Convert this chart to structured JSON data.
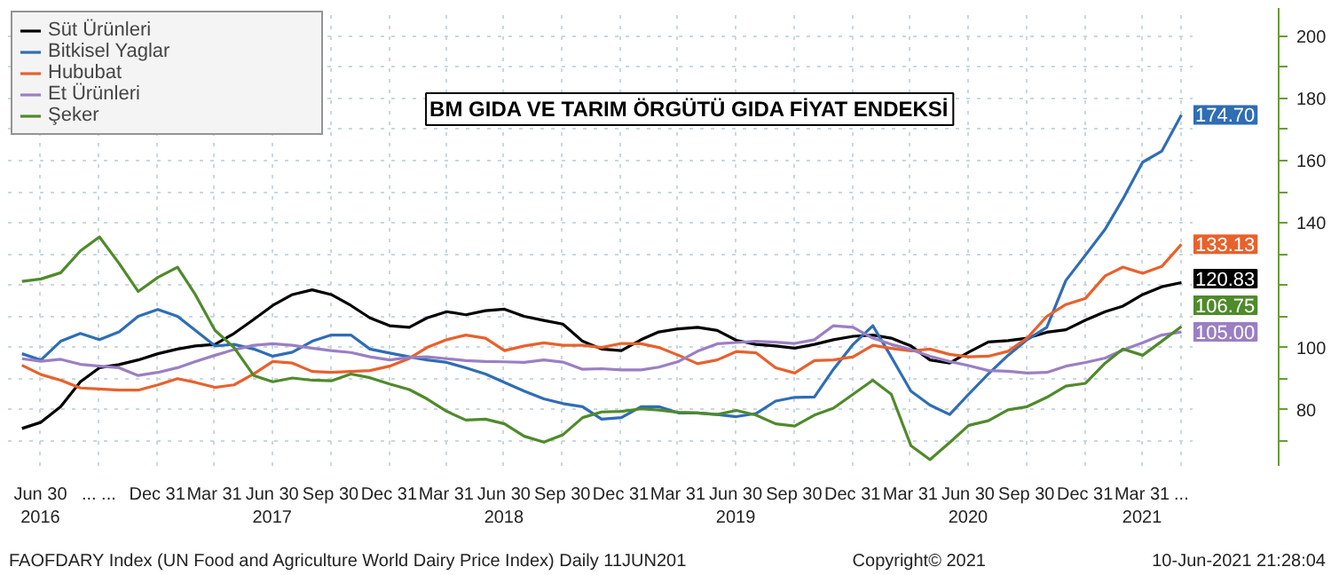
{
  "chart_data": {
    "type": "line",
    "title": "BM GIDA VE TARIM ÖRGÜTÜ GIDA FİYAT ENDEKSİ",
    "annotations": [
      "FAOFDARY Index (UN Food and Agriculture World Dairy Price Index)  Daily 11JUN201",
      "Copyright© 2021",
      "10-Jun-2021 21:28:04"
    ],
    "x": [
      "2016-06",
      "2016-07",
      "2016-08",
      "2016-09",
      "2016-10",
      "2016-11",
      "2016-12",
      "2017-01",
      "2017-02",
      "2017-03",
      "2017-04",
      "2017-05",
      "2017-06",
      "2017-07",
      "2017-08",
      "2017-09",
      "2017-10",
      "2017-11",
      "2017-12",
      "2018-01",
      "2018-02",
      "2018-03",
      "2018-04",
      "2018-05",
      "2018-06",
      "2018-07",
      "2018-08",
      "2018-09",
      "2018-10",
      "2018-11",
      "2018-12",
      "2019-01",
      "2019-02",
      "2019-03",
      "2019-04",
      "2019-05",
      "2019-06",
      "2019-07",
      "2019-08",
      "2019-09",
      "2019-10",
      "2019-11",
      "2019-12",
      "2020-01",
      "2020-02",
      "2020-03",
      "2020-04",
      "2020-05",
      "2020-06",
      "2020-07",
      "2020-08",
      "2020-09",
      "2020-10",
      "2020-11",
      "2020-12",
      "2021-01",
      "2021-02",
      "2021-03",
      "2021-04",
      "2021-05",
      "2021-06"
    ],
    "series": [
      {
        "name": "Süt Ürünleri",
        "color": "#000000",
        "values": [
          74,
          76,
          81,
          89,
          93.5,
          94.5,
          96,
          98,
          99.5,
          100.5,
          101,
          104.5,
          109,
          113.5,
          117,
          118.5,
          117,
          113.5,
          109.5,
          107,
          106.5,
          109.5,
          111.5,
          110.5,
          111.8,
          112.3,
          110,
          108.7,
          107.5,
          102,
          99.5,
          99,
          102.5,
          105,
          106,
          106.5,
          105.5,
          102.3,
          101,
          100.5,
          99.8,
          101,
          102.5,
          103.6,
          104,
          103,
          100.5,
          96,
          95,
          98.5,
          101.8,
          102.2,
          103,
          104.9,
          105.7,
          108.8,
          111.5,
          113.3,
          117,
          119.5,
          120.83
        ],
        "value_labels": [
          null,
          null,
          null,
          null,
          null,
          null,
          null,
          null,
          null,
          null,
          null,
          null,
          null,
          null,
          null,
          null,
          null,
          null,
          null,
          null,
          null,
          null,
          null,
          null,
          null,
          null,
          null,
          null,
          null,
          null,
          null,
          null,
          null,
          null,
          null,
          null,
          null,
          null,
          null,
          null,
          null,
          null,
          null,
          null,
          null,
          null,
          null,
          null,
          null,
          null,
          null,
          null,
          null,
          null,
          null,
          null,
          null,
          null,
          null,
          null,
          "120.83"
        ]
      },
      {
        "name": "Bitkisel Yaglar",
        "color": "#2f6db5",
        "values": [
          98,
          96,
          102,
          104.5,
          102.5,
          105,
          110,
          112.2,
          110,
          105.5,
          100.5,
          101,
          99.5,
          97.2,
          98.5,
          102,
          104,
          104,
          99.5,
          98.2,
          97,
          96,
          95.2,
          93.5,
          91.5,
          88.8,
          86,
          83.5,
          82,
          81,
          77,
          77.5,
          81,
          81,
          79,
          79,
          78.5,
          77.8,
          78.8,
          82.8,
          84,
          84.1,
          93,
          101,
          107,
          97,
          86,
          81.5,
          78.5,
          85,
          91.5,
          97.5,
          102.5,
          106.5,
          121.5,
          129.7,
          138,
          147.7,
          159.5,
          163,
          174.7
        ],
        "value_labels": [
          null,
          null,
          null,
          null,
          null,
          null,
          null,
          null,
          null,
          null,
          null,
          null,
          null,
          null,
          null,
          null,
          null,
          null,
          null,
          null,
          null,
          null,
          null,
          null,
          null,
          null,
          null,
          null,
          null,
          null,
          null,
          null,
          null,
          null,
          null,
          null,
          null,
          null,
          null,
          null,
          null,
          null,
          null,
          null,
          null,
          null,
          null,
          null,
          null,
          null,
          null,
          null,
          null,
          null,
          null,
          null,
          null,
          null,
          null,
          null,
          "174.70"
        ]
      },
      {
        "name": "Hububat",
        "color": "#e8612c",
        "values": [
          94.3,
          91.3,
          89.5,
          87,
          86.7,
          86.3,
          86.3,
          88,
          90,
          88.8,
          87.2,
          88,
          91.5,
          95.5,
          95,
          92.3,
          92,
          92.3,
          92.6,
          94,
          96.5,
          100,
          102.5,
          104,
          103,
          99,
          100.5,
          101.5,
          100.7,
          100.7,
          100,
          101.3,
          101.2,
          100,
          97.5,
          94.8,
          96,
          98.7,
          98.3,
          93.5,
          91.8,
          95.8,
          96,
          97,
          100.7,
          99.7,
          98.9,
          99.5,
          97.8,
          97,
          97.2,
          98.8,
          103,
          110,
          113.8,
          115.8,
          123,
          125.8,
          123.8,
          126,
          133.13
        ],
        "value_labels": [
          null,
          null,
          null,
          null,
          null,
          null,
          null,
          null,
          null,
          null,
          null,
          null,
          null,
          null,
          null,
          null,
          null,
          null,
          null,
          null,
          null,
          null,
          null,
          null,
          null,
          null,
          null,
          null,
          null,
          null,
          null,
          null,
          null,
          null,
          null,
          null,
          null,
          null,
          null,
          null,
          null,
          null,
          null,
          null,
          null,
          null,
          null,
          null,
          null,
          null,
          null,
          null,
          null,
          null,
          null,
          null,
          null,
          null,
          null,
          null,
          "133.13"
        ]
      },
      {
        "name": "Et Ürünleri",
        "color": "#9a7fc4",
        "values": [
          96.4,
          95.6,
          96.2,
          94.6,
          94,
          93.5,
          91,
          92,
          93.5,
          95.5,
          97.5,
          99.3,
          100.7,
          101.2,
          100.7,
          99.8,
          99,
          98.4,
          97,
          96,
          96.8,
          97,
          96.4,
          95.8,
          95.5,
          95.4,
          95.2,
          96,
          95.3,
          93,
          93.2,
          92.8,
          92.8,
          93.7,
          95.5,
          98.8,
          101.2,
          101.6,
          102,
          101.7,
          101.3,
          102.5,
          107,
          106.5,
          103,
          101,
          99.3,
          97.2,
          95.5,
          94.2,
          92.6,
          92.4,
          91.8,
          92,
          94,
          95.2,
          96.6,
          99.2,
          101.5,
          104,
          105.0
        ],
        "value_labels": [
          null,
          null,
          null,
          null,
          null,
          null,
          null,
          null,
          null,
          null,
          null,
          null,
          null,
          null,
          null,
          null,
          null,
          null,
          null,
          null,
          null,
          null,
          null,
          null,
          null,
          null,
          null,
          null,
          null,
          null,
          null,
          null,
          null,
          null,
          null,
          null,
          null,
          null,
          null,
          null,
          null,
          null,
          null,
          null,
          null,
          null,
          null,
          null,
          null,
          null,
          null,
          null,
          null,
          null,
          null,
          null,
          null,
          null,
          null,
          null,
          "105.00"
        ]
      },
      {
        "name": "Şeker",
        "color": "#4f8a2b",
        "values": [
          121.2,
          122,
          124,
          131,
          135.5,
          127,
          118,
          122.5,
          125.8,
          117,
          105.5,
          100,
          91,
          89,
          90.2,
          89.5,
          89.3,
          91.5,
          90.3,
          88.3,
          86.5,
          83.5,
          79.5,
          76.7,
          77,
          75.5,
          71.5,
          69.6,
          72,
          77.5,
          79.3,
          79.5,
          80.3,
          79.9,
          79.2,
          79,
          78.5,
          79.8,
          78.3,
          75.5,
          74.8,
          78.3,
          80.5,
          85,
          89.5,
          85,
          68.5,
          64,
          69.5,
          75,
          76.5,
          80,
          81,
          84,
          87.6,
          88.5,
          95,
          99.5,
          97.5,
          102,
          106.75
        ],
        "value_labels": [
          null,
          null,
          null,
          null,
          null,
          null,
          null,
          null,
          null,
          null,
          null,
          null,
          null,
          null,
          null,
          null,
          null,
          null,
          null,
          null,
          null,
          null,
          null,
          null,
          null,
          null,
          null,
          null,
          null,
          null,
          null,
          null,
          null,
          null,
          null,
          null,
          null,
          null,
          null,
          null,
          null,
          null,
          null,
          null,
          null,
          null,
          null,
          null,
          null,
          null,
          null,
          null,
          null,
          null,
          null,
          null,
          null,
          null,
          null,
          null,
          "106.75"
        ]
      }
    ],
    "xlim": [
      "2016-05-10",
      "2021-06-20"
    ],
    "xticks": [
      {
        "value": "2016-06-30",
        "label": "Jun 30\n2016"
      },
      {
        "value": "2016-09-30",
        "label": "... ..."
      },
      {
        "value": "2016-12-31",
        "label": "Dec 31"
      },
      {
        "value": "2017-03-31",
        "label": "Mar 31"
      },
      {
        "value": "2017-06-30",
        "label": "Jun 30\n2017"
      },
      {
        "value": "2017-09-30",
        "label": "Sep 30"
      },
      {
        "value": "2017-12-31",
        "label": "Dec 31"
      },
      {
        "value": "2018-03-31",
        "label": "Mar 31"
      },
      {
        "value": "2018-06-30",
        "label": "Jun 30\n2018"
      },
      {
        "value": "2018-09-30",
        "label": "Sep 30"
      },
      {
        "value": "2018-12-31",
        "label": "Dec 31"
      },
      {
        "value": "2019-03-31",
        "label": "Mar 31"
      },
      {
        "value": "2019-06-30",
        "label": "Jun 30\n2019"
      },
      {
        "value": "2019-09-30",
        "label": "Sep 30"
      },
      {
        "value": "2019-12-31",
        "label": "Dec 31"
      },
      {
        "value": "2020-03-31",
        "label": "Mar 31"
      },
      {
        "value": "2020-06-30",
        "label": "Jun 30\n2020"
      },
      {
        "value": "2020-09-30",
        "label": "Sep 30"
      },
      {
        "value": "2020-12-31",
        "label": "Dec 31"
      },
      {
        "value": "2021-03-31",
        "label": "Mar 31\n2021"
      },
      {
        "value": "2021-06-01",
        "label": "..."
      }
    ],
    "ylim": [
      62,
      209
    ],
    "yticks": [
      {
        "value": 70,
        "label": null
      },
      80,
      {
        "value": 90,
        "label": null
      },
      100,
      {
        "value": 110,
        "label": null
      },
      {
        "value": 120,
        "label": null
      },
      {
        "value": 130,
        "label": null
      },
      140,
      {
        "value": 150,
        "label": null
      },
      160,
      {
        "value": 170,
        "label": null
      },
      180,
      {
        "value": 190,
        "label": null
      },
      200
    ],
    "grid": true,
    "legend": "top left",
    "line_style": "solid"
  }
}
